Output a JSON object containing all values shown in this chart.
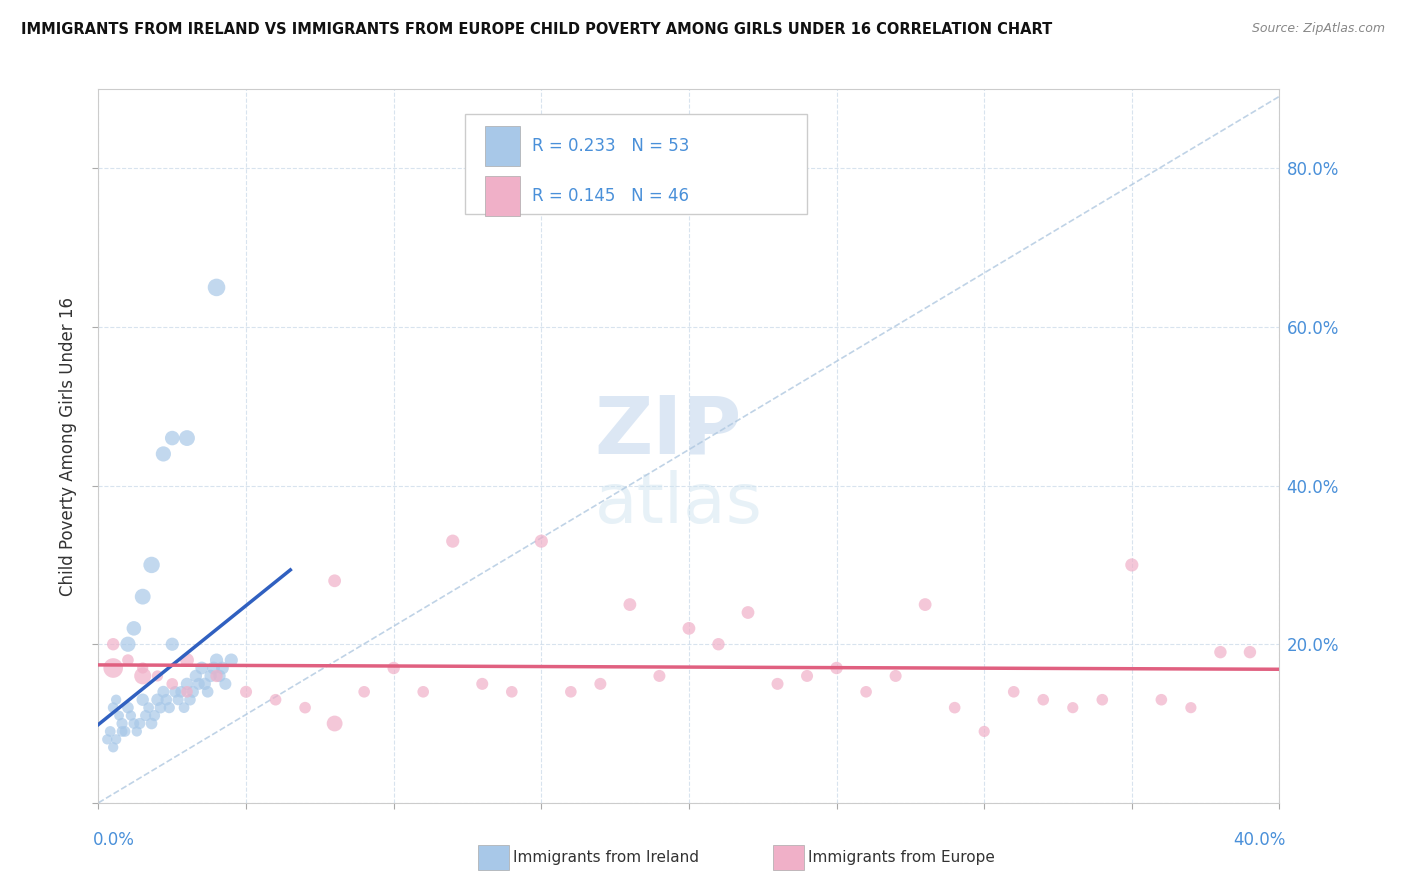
{
  "title": "IMMIGRANTS FROM IRELAND VS IMMIGRANTS FROM EUROPE CHILD POVERTY AMONG GIRLS UNDER 16 CORRELATION CHART",
  "source": "Source: ZipAtlas.com",
  "ylabel": "Child Poverty Among Girls Under 16",
  "xlim": [
    0.0,
    0.4
  ],
  "ylim": [
    0.0,
    0.9
  ],
  "yticks": [
    0.0,
    0.2,
    0.4,
    0.6,
    0.8
  ],
  "ytick_labels": [
    "",
    "20.0%",
    "40.0%",
    "60.0%",
    "80.0%"
  ],
  "legend_r1": "R = 0.233",
  "legend_n1": "N = 53",
  "legend_r2": "R = 0.145",
  "legend_n2": "N = 46",
  "color_ireland": "#a8c8e8",
  "color_europe": "#f0b0c8",
  "line_color_ireland": "#3060c0",
  "line_color_europe": "#e06080",
  "dashed_line_color": "#b0c8e0",
  "watermark_zip": "ZIP",
  "watermark_atlas": "atlas",
  "ireland_x": [
    0.005,
    0.006,
    0.007,
    0.008,
    0.009,
    0.01,
    0.011,
    0.012,
    0.013,
    0.014,
    0.015,
    0.016,
    0.017,
    0.018,
    0.019,
    0.02,
    0.021,
    0.022,
    0.023,
    0.024,
    0.025,
    0.026,
    0.027,
    0.028,
    0.029,
    0.03,
    0.031,
    0.032,
    0.033,
    0.034,
    0.035,
    0.036,
    0.037,
    0.038,
    0.039,
    0.04,
    0.041,
    0.042,
    0.043,
    0.045,
    0.003,
    0.004,
    0.005,
    0.006,
    0.008,
    0.01,
    0.012,
    0.015,
    0.018,
    0.022,
    0.025,
    0.03,
    0.04
  ],
  "ireland_y": [
    0.12,
    0.13,
    0.11,
    0.1,
    0.09,
    0.12,
    0.11,
    0.1,
    0.09,
    0.1,
    0.13,
    0.11,
    0.12,
    0.1,
    0.11,
    0.13,
    0.12,
    0.14,
    0.13,
    0.12,
    0.2,
    0.14,
    0.13,
    0.14,
    0.12,
    0.15,
    0.13,
    0.14,
    0.16,
    0.15,
    0.17,
    0.15,
    0.14,
    0.16,
    0.17,
    0.18,
    0.16,
    0.17,
    0.15,
    0.18,
    0.08,
    0.09,
    0.07,
    0.08,
    0.09,
    0.2,
    0.22,
    0.26,
    0.3,
    0.44,
    0.46,
    0.46,
    0.65
  ],
  "ireland_sizes": [
    60,
    55,
    50,
    65,
    60,
    70,
    55,
    60,
    55,
    65,
    80,
    65,
    60,
    70,
    65,
    80,
    70,
    75,
    70,
    65,
    90,
    70,
    65,
    70,
    60,
    80,
    70,
    75,
    80,
    75,
    85,
    80,
    70,
    80,
    85,
    90,
    80,
    85,
    75,
    90,
    55,
    60,
    55,
    55,
    60,
    120,
    110,
    130,
    140,
    120,
    110,
    130,
    160
  ],
  "europe_x": [
    0.005,
    0.01,
    0.015,
    0.02,
    0.025,
    0.03,
    0.04,
    0.05,
    0.06,
    0.07,
    0.08,
    0.09,
    0.1,
    0.11,
    0.12,
    0.13,
    0.14,
    0.15,
    0.16,
    0.17,
    0.18,
    0.19,
    0.2,
    0.21,
    0.22,
    0.23,
    0.24,
    0.25,
    0.26,
    0.27,
    0.28,
    0.29,
    0.3,
    0.31,
    0.32,
    0.33,
    0.34,
    0.35,
    0.36,
    0.37,
    0.38,
    0.39,
    0.005,
    0.015,
    0.03,
    0.08
  ],
  "europe_y": [
    0.2,
    0.18,
    0.17,
    0.16,
    0.15,
    0.14,
    0.16,
    0.14,
    0.13,
    0.12,
    0.28,
    0.14,
    0.17,
    0.14,
    0.33,
    0.15,
    0.14,
    0.33,
    0.14,
    0.15,
    0.25,
    0.16,
    0.22,
    0.2,
    0.24,
    0.15,
    0.16,
    0.17,
    0.14,
    0.16,
    0.25,
    0.12,
    0.09,
    0.14,
    0.13,
    0.12,
    0.13,
    0.3,
    0.13,
    0.12,
    0.19,
    0.19,
    0.17,
    0.16,
    0.18,
    0.1
  ],
  "europe_sizes": [
    80,
    70,
    65,
    65,
    70,
    70,
    80,
    75,
    70,
    70,
    85,
    70,
    80,
    70,
    90,
    75,
    70,
    90,
    70,
    75,
    85,
    75,
    85,
    80,
    85,
    75,
    75,
    80,
    70,
    75,
    85,
    70,
    65,
    70,
    70,
    65,
    70,
    90,
    70,
    65,
    80,
    80,
    200,
    150,
    100,
    130
  ]
}
